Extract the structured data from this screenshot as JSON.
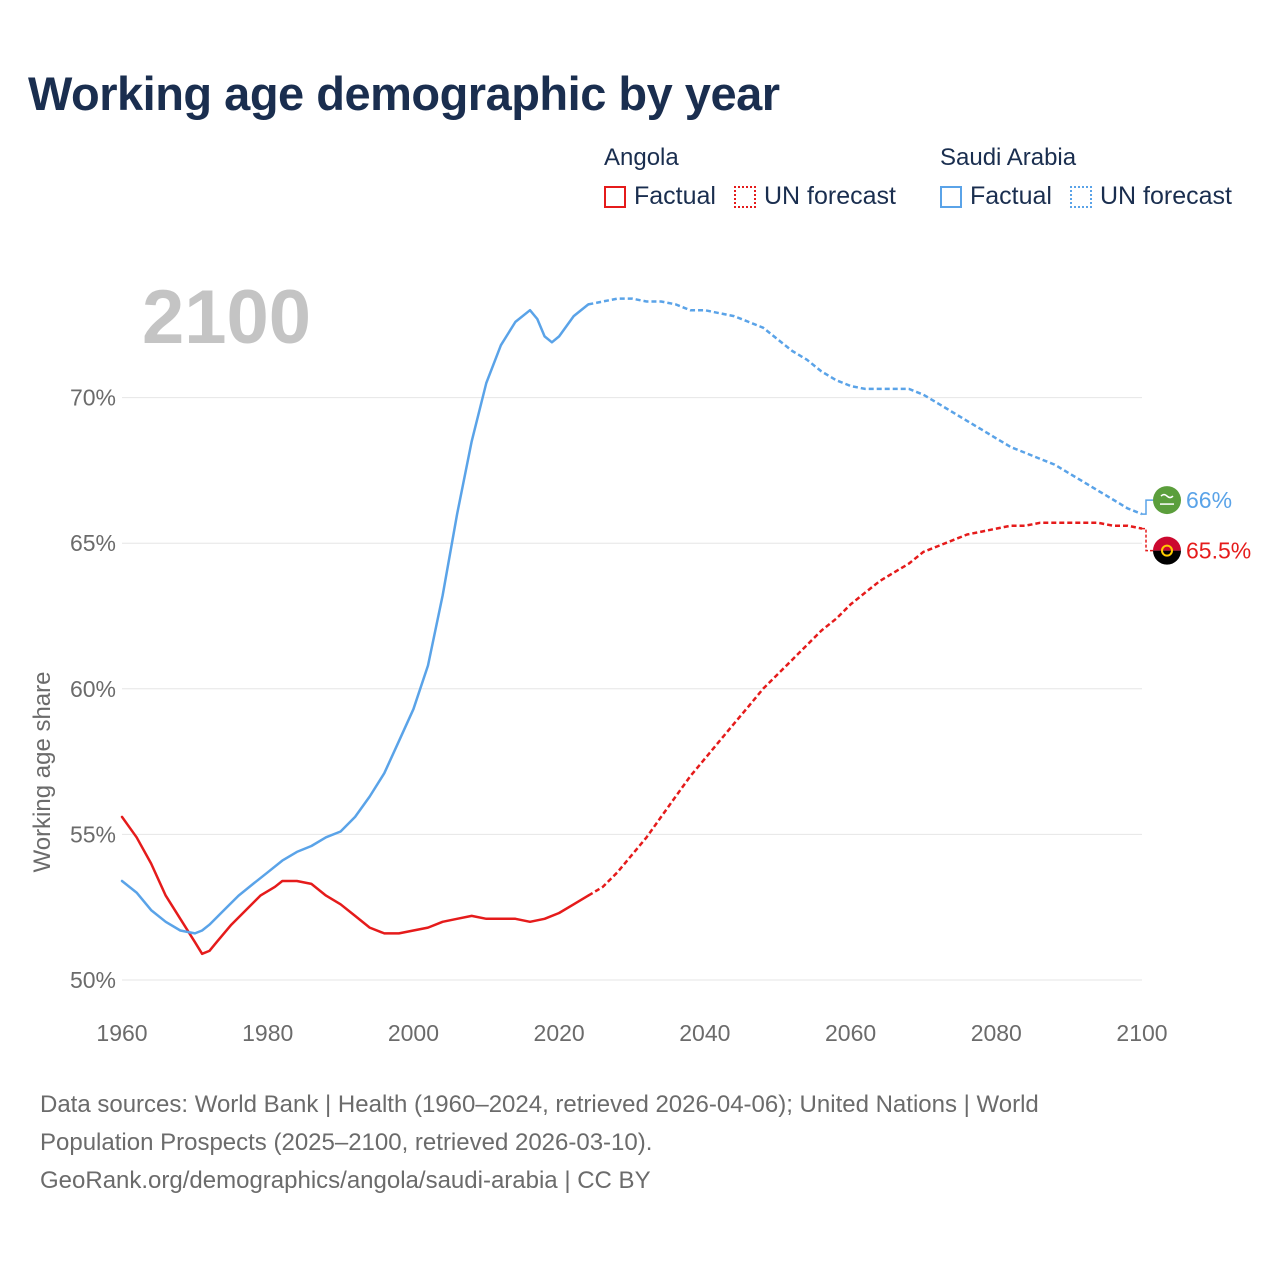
{
  "title": "Working age demographic by year",
  "legend": {
    "groups": [
      {
        "country": "Angola",
        "factual_label": "Factual",
        "forecast_label": "UN forecast",
        "color": "#e51b1b"
      },
      {
        "country": "Saudi Arabia",
        "factual_label": "Factual",
        "forecast_label": "UN forecast",
        "color": "#5aa3e8"
      }
    ]
  },
  "chart_data": {
    "type": "line",
    "title": "Working age demographic by year",
    "xlabel": "",
    "ylabel": "Working age share",
    "xlim": [
      1960,
      2100
    ],
    "ylim": [
      50,
      75
    ],
    "x_ticks": [
      "1960",
      "1980",
      "2000",
      "2020",
      "2040",
      "2060",
      "2080",
      "2100"
    ],
    "y_ticks": [
      "50%",
      "55%",
      "60%",
      "65%",
      "70%"
    ],
    "grid": true,
    "year_watermark": "2100",
    "factual_range": [
      1960,
      2024
    ],
    "forecast_range": [
      2025,
      2100
    ],
    "series": [
      {
        "name": "Angola",
        "color": "#e51b1b",
        "end_label": "65.5%",
        "flag_icon": "angola-flag-icon",
        "factual": [
          [
            1960,
            55.6
          ],
          [
            1962,
            54.9
          ],
          [
            1964,
            54.0
          ],
          [
            1966,
            52.9
          ],
          [
            1968,
            52.1
          ],
          [
            1970,
            51.3
          ],
          [
            1971,
            50.9
          ],
          [
            1972,
            51.0
          ],
          [
            1973,
            51.3
          ],
          [
            1975,
            51.9
          ],
          [
            1977,
            52.4
          ],
          [
            1979,
            52.9
          ],
          [
            1981,
            53.2
          ],
          [
            1982,
            53.4
          ],
          [
            1984,
            53.4
          ],
          [
            1986,
            53.3
          ],
          [
            1988,
            52.9
          ],
          [
            1990,
            52.6
          ],
          [
            1992,
            52.2
          ],
          [
            1994,
            51.8
          ],
          [
            1996,
            51.6
          ],
          [
            1998,
            51.6
          ],
          [
            2000,
            51.7
          ],
          [
            2002,
            51.8
          ],
          [
            2004,
            52.0
          ],
          [
            2006,
            52.1
          ],
          [
            2008,
            52.2
          ],
          [
            2010,
            52.1
          ],
          [
            2012,
            52.1
          ],
          [
            2014,
            52.1
          ],
          [
            2016,
            52.0
          ],
          [
            2018,
            52.1
          ],
          [
            2020,
            52.3
          ],
          [
            2022,
            52.6
          ],
          [
            2024,
            52.9
          ]
        ],
        "forecast": [
          [
            2024,
            52.9
          ],
          [
            2026,
            53.2
          ],
          [
            2028,
            53.7
          ],
          [
            2030,
            54.3
          ],
          [
            2032,
            54.9
          ],
          [
            2034,
            55.6
          ],
          [
            2036,
            56.3
          ],
          [
            2038,
            57.0
          ],
          [
            2040,
            57.6
          ],
          [
            2042,
            58.2
          ],
          [
            2044,
            58.8
          ],
          [
            2046,
            59.4
          ],
          [
            2048,
            60.0
          ],
          [
            2050,
            60.5
          ],
          [
            2052,
            61.0
          ],
          [
            2054,
            61.5
          ],
          [
            2056,
            62.0
          ],
          [
            2058,
            62.4
          ],
          [
            2060,
            62.9
          ],
          [
            2062,
            63.3
          ],
          [
            2064,
            63.7
          ],
          [
            2066,
            64.0
          ],
          [
            2068,
            64.3
          ],
          [
            2070,
            64.7
          ],
          [
            2072,
            64.9
          ],
          [
            2074,
            65.1
          ],
          [
            2076,
            65.3
          ],
          [
            2078,
            65.4
          ],
          [
            2080,
            65.5
          ],
          [
            2082,
            65.6
          ],
          [
            2084,
            65.6
          ],
          [
            2086,
            65.7
          ],
          [
            2088,
            65.7
          ],
          [
            2090,
            65.7
          ],
          [
            2092,
            65.7
          ],
          [
            2094,
            65.7
          ],
          [
            2096,
            65.6
          ],
          [
            2098,
            65.6
          ],
          [
            2100,
            65.5
          ]
        ]
      },
      {
        "name": "Saudi Arabia",
        "color": "#5aa3e8",
        "end_label": "66%",
        "flag_icon": "saudi-arabia-flag-icon",
        "factual": [
          [
            1960,
            53.4
          ],
          [
            1962,
            53.0
          ],
          [
            1964,
            52.4
          ],
          [
            1966,
            52.0
          ],
          [
            1968,
            51.7
          ],
          [
            1970,
            51.6
          ],
          [
            1971,
            51.7
          ],
          [
            1972,
            51.9
          ],
          [
            1974,
            52.4
          ],
          [
            1976,
            52.9
          ],
          [
            1978,
            53.3
          ],
          [
            1980,
            53.7
          ],
          [
            1982,
            54.1
          ],
          [
            1984,
            54.4
          ],
          [
            1986,
            54.6
          ],
          [
            1988,
            54.9
          ],
          [
            1990,
            55.1
          ],
          [
            1992,
            55.6
          ],
          [
            1994,
            56.3
          ],
          [
            1996,
            57.1
          ],
          [
            1998,
            58.2
          ],
          [
            2000,
            59.3
          ],
          [
            2002,
            60.8
          ],
          [
            2004,
            63.2
          ],
          [
            2006,
            66.0
          ],
          [
            2008,
            68.5
          ],
          [
            2010,
            70.5
          ],
          [
            2012,
            71.8
          ],
          [
            2014,
            72.6
          ],
          [
            2016,
            73.0
          ],
          [
            2017,
            72.7
          ],
          [
            2018,
            72.1
          ],
          [
            2019,
            71.9
          ],
          [
            2020,
            72.1
          ],
          [
            2022,
            72.8
          ],
          [
            2024,
            73.2
          ]
        ],
        "forecast": [
          [
            2024,
            73.2
          ],
          [
            2026,
            73.3
          ],
          [
            2028,
            73.4
          ],
          [
            2030,
            73.4
          ],
          [
            2032,
            73.3
          ],
          [
            2034,
            73.3
          ],
          [
            2036,
            73.2
          ],
          [
            2038,
            73.0
          ],
          [
            2040,
            73.0
          ],
          [
            2042,
            72.9
          ],
          [
            2044,
            72.8
          ],
          [
            2046,
            72.6
          ],
          [
            2048,
            72.4
          ],
          [
            2050,
            72.0
          ],
          [
            2052,
            71.6
          ],
          [
            2054,
            71.3
          ],
          [
            2056,
            70.9
          ],
          [
            2058,
            70.6
          ],
          [
            2060,
            70.4
          ],
          [
            2062,
            70.3
          ],
          [
            2064,
            70.3
          ],
          [
            2066,
            70.3
          ],
          [
            2068,
            70.3
          ],
          [
            2070,
            70.1
          ],
          [
            2072,
            69.8
          ],
          [
            2074,
            69.5
          ],
          [
            2076,
            69.2
          ],
          [
            2078,
            68.9
          ],
          [
            2080,
            68.6
          ],
          [
            2082,
            68.3
          ],
          [
            2084,
            68.1
          ],
          [
            2086,
            67.9
          ],
          [
            2088,
            67.7
          ],
          [
            2090,
            67.4
          ],
          [
            2092,
            67.1
          ],
          [
            2094,
            66.8
          ],
          [
            2096,
            66.5
          ],
          [
            2098,
            66.2
          ],
          [
            2100,
            66.0
          ]
        ]
      }
    ]
  },
  "footer": {
    "line1": "Data sources: World Bank | Health (1960–2024, retrieved 2026-04-06); United Nations | World",
    "line2": "Population Prospects (2025–2100, retrieved 2026-03-10).",
    "line3": "GeoRank.org/demographics/angola/saudi-arabia | CC BY"
  }
}
